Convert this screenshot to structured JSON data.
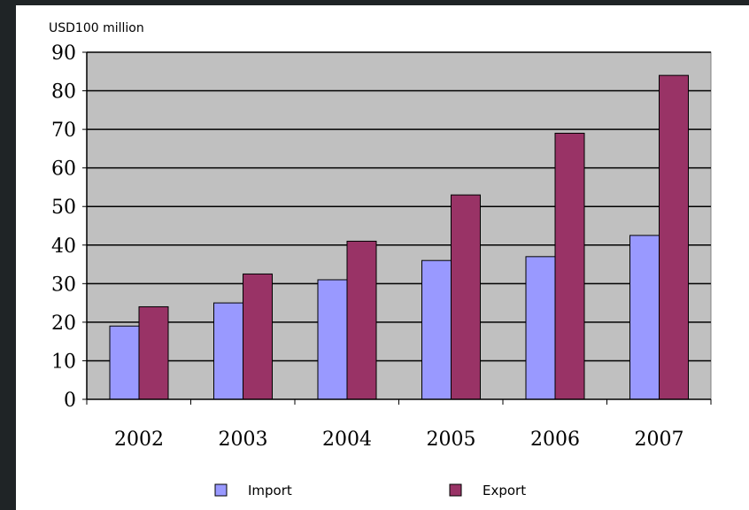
{
  "chart_data": {
    "type": "bar",
    "unit_label": "USD100 million",
    "categories": [
      "2002",
      "2003",
      "2004",
      "2005",
      "2006",
      "2007"
    ],
    "series": [
      {
        "name": "Import",
        "color": "#9999ff",
        "values": [
          19,
          25,
          31,
          36,
          37,
          42.5
        ]
      },
      {
        "name": "Export",
        "color": "#993366",
        "values": [
          24,
          32.5,
          41,
          53,
          69,
          84
        ]
      }
    ],
    "ylim": [
      0,
      90
    ],
    "yticks": [
      "0",
      "10",
      "20",
      "30",
      "40",
      "50",
      "60",
      "70",
      "80",
      "90"
    ],
    "grid": true,
    "plot_background": "#c0c0c0",
    "legend_position": "bottom"
  }
}
